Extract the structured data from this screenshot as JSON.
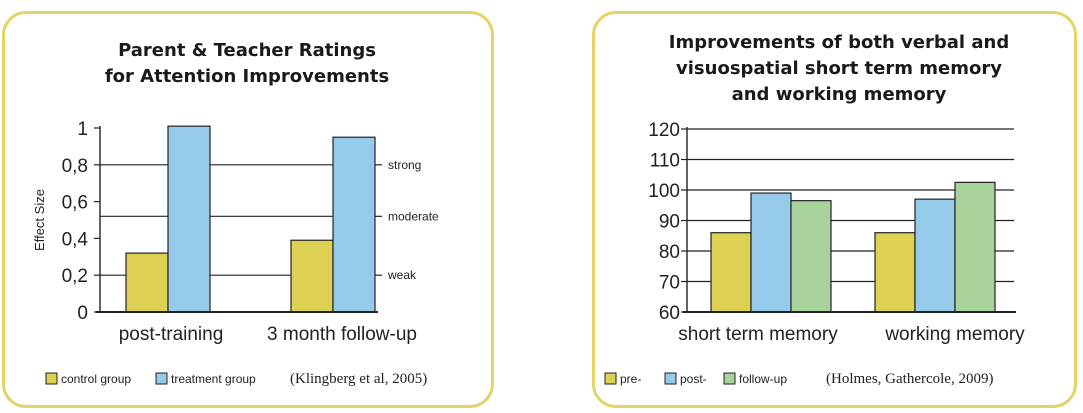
{
  "chart_data": [
    {
      "type": "bar",
      "title_lines": [
        "Parent & Teacher Ratings",
        "for Attention Improvements"
      ],
      "ylabel": "Effect Size",
      "xlabel": "",
      "ylim": [
        0,
        1
      ],
      "yticks": [
        "0",
        "0,2",
        "0,4",
        "0,6",
        "0,8",
        "1"
      ],
      "categories": [
        "post-training",
        "3 month follow-up"
      ],
      "series": [
        {
          "name": "control group",
          "color": "#ddd153",
          "values": [
            0.32,
            0.39
          ]
        },
        {
          "name": "treatment group",
          "color": "#96caea",
          "values": [
            1.01,
            0.95
          ]
        }
      ],
      "annotations": [
        {
          "label": "strong",
          "value": 0.8
        },
        {
          "label": "moderate",
          "value": 0.52
        },
        {
          "label": "weak",
          "value": 0.2
        }
      ],
      "source": "(Klingberg et al, 2005)",
      "legend": "bottom"
    },
    {
      "type": "bar",
      "title_lines": [
        "Improvements of both verbal and",
        "visuospatial short term memory",
        "and working memory"
      ],
      "ylabel": "",
      "xlabel": "",
      "ylim": [
        60,
        120
      ],
      "yticks": [
        "60",
        "70",
        "80",
        "90",
        "100",
        "110",
        "120"
      ],
      "categories": [
        "short term memory",
        "working memory"
      ],
      "series": [
        {
          "name": "pre-",
          "color": "#ddd153",
          "values": [
            86,
            86
          ]
        },
        {
          "name": "post-",
          "color": "#96caea",
          "values": [
            99,
            97
          ]
        },
        {
          "name": "follow-up",
          "color": "#a9d39c",
          "values": [
            96.5,
            102.5
          ]
        }
      ],
      "source": "(Holmes, Gathercole, 2009)",
      "legend": "bottom"
    }
  ]
}
